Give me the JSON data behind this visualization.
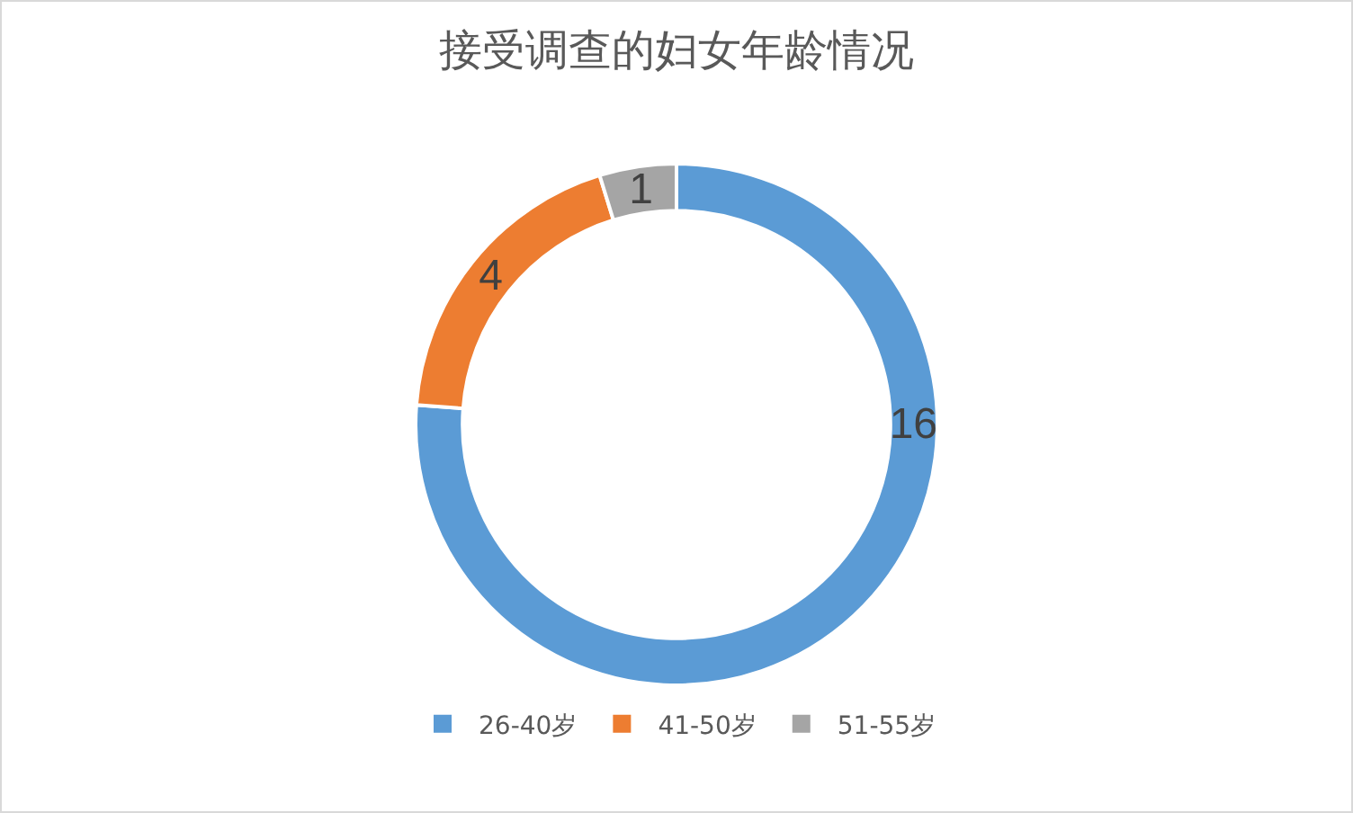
{
  "chart_data": {
    "type": "donut",
    "title": "接受调查的妇女年龄情况",
    "categories": [
      "26-40岁",
      "41-50岁",
      "51-55岁"
    ],
    "values": [
      16,
      4,
      1
    ],
    "colors": [
      "#5b9bd5",
      "#ed7d31",
      "#a5a5a5"
    ],
    "data_labels": true,
    "legend": "bottom"
  }
}
